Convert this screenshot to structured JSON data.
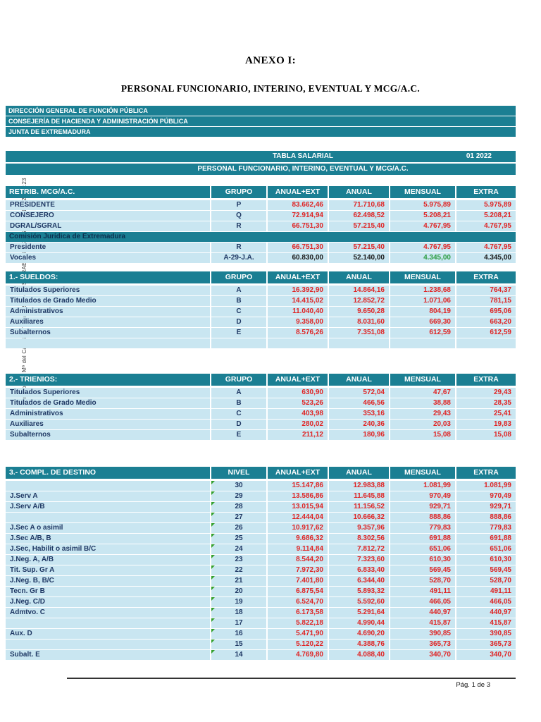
{
  "page": {
    "title_line1": "ANEXO I:",
    "title_line2": "PERSONAL FUNCIONARIO, INTERINO, EVENTUAL Y MCG/A.C.",
    "footer": "Pág. 1 de 3",
    "signature": "Firmado por: Mª del Carmen Vicente Rivero. CSV: RAE164/38935543. 20/1/2022 19:23"
  },
  "org_header": {
    "lines": [
      "DIRECCIÓN GENERAL DE FUNCIÓN PÚBLICA",
      "CONSEJERÍA DE HACIENDA Y ADMINISTRACIÓN PÚBLICA",
      "JUNTA DE EXTREMADURA"
    ]
  },
  "table_header": {
    "title": "TABLA SALARIAL",
    "period": "01 2022",
    "subtitle": "PERSONAL FUNCIONARIO, INTERINO, EVENTUAL Y MCG/A.C."
  },
  "colors": {
    "teal": "#1b7f93",
    "row_bg": "#c9e6f1",
    "label_navy": "#1f3864",
    "value_red": "#e02424",
    "value_green": "#2e9e44",
    "value_dark": "#1a1a1a",
    "subheader_text": "#0c3050",
    "marker_green": "#33a02c"
  },
  "sections": [
    {
      "id": "retrib",
      "title": "RETRIB. MCG/A.C.",
      "group_header": "GRUPO",
      "columns": [
        "ANUAL+EXT",
        "ANUAL",
        "MENSUAL",
        "EXTRA"
      ],
      "rows": [
        {
          "type": "data",
          "label": "PRESIDENTE",
          "group": "P",
          "values": [
            "83.662,46",
            "71.710,68",
            "5.975,89",
            "5.975,89"
          ]
        },
        {
          "type": "data",
          "label": "CONSEJERO",
          "group": "Q",
          "values": [
            "72.914,94",
            "62.498,52",
            "5.208,21",
            "5.208,21"
          ]
        },
        {
          "type": "data",
          "label": "DGRAL/SGRAL",
          "group": "R",
          "values": [
            "66.751,30",
            "57.215,40",
            "4.767,95",
            "4.767,95"
          ]
        },
        {
          "type": "subheader",
          "label": "Comisión Jurídica de Extremadura"
        },
        {
          "type": "data",
          "label": "Presidente",
          "group": "R",
          "values": [
            "66.751,30",
            "57.215,40",
            "4.767,95",
            "4.767,95"
          ]
        },
        {
          "type": "data",
          "label": "Vocales",
          "group": "A-29-J.A.",
          "values": [
            "60.830,00",
            "52.140,00",
            "4.345,00",
            "4.345,00"
          ],
          "styles": [
            "dark",
            "dark",
            "green",
            "dark"
          ]
        }
      ]
    },
    {
      "id": "sueldos",
      "title": "1.- SUELDOS:",
      "group_header": "GRUPO",
      "columns": [
        "ANUAL+EXT",
        "ANUAL",
        "MENSUAL",
        "EXTRA"
      ],
      "rows": [
        {
          "type": "data",
          "label": "Titulados Superiores",
          "group": "A",
          "values": [
            "16.392,90",
            "14.864,16",
            "1.238,68",
            "764,37"
          ]
        },
        {
          "type": "data",
          "label": "Titulados de Grado Medio",
          "group": "B",
          "values": [
            "14.415,02",
            "12.852,72",
            "1.071,06",
            "781,15"
          ]
        },
        {
          "type": "data",
          "label": "Administrativos",
          "group": "C",
          "values": [
            "11.040,40",
            "9.650,28",
            "804,19",
            "695,06"
          ]
        },
        {
          "type": "data",
          "label": "Auxiliares",
          "group": "D",
          "values": [
            "9.358,00",
            "8.031,60",
            "669,30",
            "663,20"
          ]
        },
        {
          "type": "data",
          "label": "Subalternos",
          "group": "E",
          "values": [
            "8.576,26",
            "7.351,08",
            "612,59",
            "612,59"
          ]
        },
        {
          "type": "spacer"
        }
      ]
    },
    {
      "id": "trienios",
      "title": "2.- TRIENIOS:",
      "group_header": "GRUPO",
      "columns": [
        "ANUAL+EXT",
        "ANUAL",
        "MENSUAL",
        "EXTRA"
      ],
      "rows": [
        {
          "type": "data",
          "label": "Titulados Superiores",
          "group": "A",
          "values": [
            "630,90",
            "572,04",
            "47,67",
            "29,43"
          ]
        },
        {
          "type": "data",
          "label": "Titulados de Grado Medio",
          "group": "B",
          "values": [
            "523,26",
            "466,56",
            "38,88",
            "28,35"
          ]
        },
        {
          "type": "data",
          "label": "Administrativos",
          "group": "C",
          "values": [
            "403,98",
            "353,16",
            "29,43",
            "25,41"
          ]
        },
        {
          "type": "data",
          "label": "Auxiliares",
          "group": "D",
          "values": [
            "280,02",
            "240,36",
            "20,03",
            "19,83"
          ]
        },
        {
          "type": "data",
          "label": "Subalternos",
          "group": "E",
          "values": [
            "211,12",
            "180,96",
            "15,08",
            "15,08"
          ]
        }
      ]
    },
    {
      "id": "destino",
      "title": "3.- COMPL. DE DESTINO",
      "group_header": "NIVEL",
      "columns": [
        "ANUAL+EXT",
        "ANUAL",
        "MENSUAL",
        "EXTRA"
      ],
      "rows": [
        {
          "type": "data",
          "label": "",
          "group": "30",
          "marker": true,
          "values": [
            "15.147,86",
            "12.983,88",
            "1.081,99",
            "1.081,99"
          ]
        },
        {
          "type": "data",
          "label": "J.Serv A",
          "group": "29",
          "marker": true,
          "values": [
            "13.586,86",
            "11.645,88",
            "970,49",
            "970,49"
          ]
        },
        {
          "type": "data",
          "label": "J.Serv A/B",
          "group": "28",
          "marker": true,
          "values": [
            "13.015,94",
            "11.156,52",
            "929,71",
            "929,71"
          ]
        },
        {
          "type": "data",
          "label": "",
          "group": "27",
          "marker": true,
          "values": [
            "12.444,04",
            "10.666,32",
            "888,86",
            "888,86"
          ]
        },
        {
          "type": "data",
          "label": "J.Sec A o asimil",
          "group": "26",
          "marker": true,
          "values": [
            "10.917,62",
            "9.357,96",
            "779,83",
            "779,83"
          ]
        },
        {
          "type": "data",
          "label": "J.Sec A/B, B",
          "group": "25",
          "marker": true,
          "values": [
            "9.686,32",
            "8.302,56",
            "691,88",
            "691,88"
          ]
        },
        {
          "type": "data",
          "label": "J.Sec, Habilit o asimil B/C",
          "group": "24",
          "marker": true,
          "values": [
            "9.114,84",
            "7.812,72",
            "651,06",
            "651,06"
          ]
        },
        {
          "type": "data",
          "label": "J.Neg. A, A/B",
          "group": "23",
          "marker": true,
          "values": [
            "8.544,20",
            "7.323,60",
            "610,30",
            "610,30"
          ]
        },
        {
          "type": "data",
          "label": "Tit. Sup. Gr A",
          "group": "22",
          "marker": true,
          "values": [
            "7.972,30",
            "6.833,40",
            "569,45",
            "569,45"
          ]
        },
        {
          "type": "data",
          "label": "J.Neg. B, B/C",
          "group": "21",
          "marker": true,
          "values": [
            "7.401,80",
            "6.344,40",
            "528,70",
            "528,70"
          ]
        },
        {
          "type": "data",
          "label": "Tecn. Gr B",
          "group": "20",
          "marker": true,
          "values": [
            "6.875,54",
            "5.893,32",
            "491,11",
            "491,11"
          ]
        },
        {
          "type": "data",
          "label": "J.Neg. C/D",
          "group": "19",
          "marker": true,
          "values": [
            "6.524,70",
            "5.592,60",
            "466,05",
            "466,05"
          ]
        },
        {
          "type": "data",
          "label": "Admtvo. C",
          "group": "18",
          "marker": true,
          "values": [
            "6.173,58",
            "5.291,64",
            "440,97",
            "440,97"
          ]
        },
        {
          "type": "data",
          "label": "",
          "group": "17",
          "marker": true,
          "values": [
            "5.822,18",
            "4.990,44",
            "415,87",
            "415,87"
          ]
        },
        {
          "type": "data",
          "label": "Aux. D",
          "group": "16",
          "marker": true,
          "values": [
            "5.471,90",
            "4.690,20",
            "390,85",
            "390,85"
          ]
        },
        {
          "type": "data",
          "label": "",
          "group": "15",
          "marker": true,
          "values": [
            "5.120,22",
            "4.388,76",
            "365,73",
            "365,73"
          ]
        },
        {
          "type": "data",
          "label": "Subalt. E",
          "group": "14",
          "marker": true,
          "values": [
            "4.769,80",
            "4.088,40",
            "340,70",
            "340,70"
          ]
        }
      ]
    }
  ]
}
